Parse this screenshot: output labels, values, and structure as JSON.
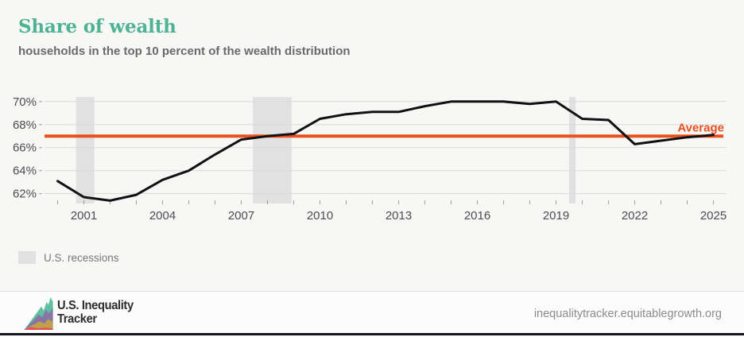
{
  "page": {
    "title": "Share of wealth",
    "subtitle": "households in the top 10 percent of the wealth distribution"
  },
  "legend": {
    "recessions_label": "U.S. recessions"
  },
  "footer": {
    "brand_line1": "U.S. Inequality",
    "brand_line2": "Tracker",
    "url": "inequalitytracker.equitablegrowth.org"
  },
  "colors": {
    "accent_teal": "#4db391",
    "line": "#111111",
    "average": "#e8511f",
    "recession_band": "#e1e1e1",
    "grid": "#d9d9d9",
    "tick": "#9a9a9a",
    "axis_text": "#4d4d4d",
    "logo_teal": "#5ec2a0",
    "logo_purple": "#8877a5",
    "logo_gold": "#c2a04b",
    "logo_red": "#e2504e"
  },
  "chart_data": {
    "type": "line",
    "title": "Share of wealth",
    "subtitle": "households in the top 10 percent of the wealth distribution",
    "series_name": "share of wealth held by households in the top 10 percent",
    "x": [
      2000,
      2001,
      2002,
      2003,
      2004,
      2005,
      2006,
      2007,
      2008,
      2009,
      2010,
      2011,
      2012,
      2013,
      2014,
      2015,
      2016,
      2017,
      2018,
      2019,
      2020,
      2021,
      2022,
      2023,
      2024,
      2025
    ],
    "values": [
      63.1,
      61.7,
      61.4,
      61.9,
      63.2,
      64.0,
      65.4,
      66.7,
      67.0,
      67.2,
      68.5,
      68.9,
      69.1,
      69.1,
      69.6,
      70.0,
      70.0,
      70.0,
      69.8,
      70.0,
      68.5,
      68.4,
      66.3,
      66.6,
      66.9,
      67.1
    ],
    "average_value": 67.0,
    "average_label": "Average",
    "y_ticks": [
      {
        "v": 70,
        "label": "70%"
      },
      {
        "v": 68,
        "label": "68%"
      },
      {
        "v": 66,
        "label": "66%"
      },
      {
        "v": 64,
        "label": "64%"
      },
      {
        "v": 62,
        "label": "62%"
      }
    ],
    "x_ticks": [
      {
        "v": 2001,
        "label": "2001"
      },
      {
        "v": 2004,
        "label": "2004"
      },
      {
        "v": 2007,
        "label": "2007"
      },
      {
        "v": 2010,
        "label": "2010"
      },
      {
        "v": 2013,
        "label": "2013"
      },
      {
        "v": 2016,
        "label": "2016"
      },
      {
        "v": 2019,
        "label": "2019"
      },
      {
        "v": 2022,
        "label": "2022"
      },
      {
        "v": 2025,
        "label": "2025"
      }
    ],
    "x_minor_ticks": [
      2000,
      2001,
      2002,
      2003,
      2004,
      2005,
      2006,
      2007,
      2008,
      2009,
      2010,
      2011,
      2012,
      2013,
      2014,
      2015,
      2016,
      2017,
      2018,
      2019,
      2020,
      2021,
      2022,
      2023,
      2024,
      2025
    ],
    "x_range": [
      1999.5,
      2025.5
    ],
    "y_range": [
      61.15,
      70.4
    ],
    "grid": true,
    "legend_position": "bottom-left",
    "recessions": [
      [
        2000.7,
        2001.4
      ],
      [
        2007.44,
        2008.92
      ],
      [
        2019.5,
        2019.75
      ]
    ],
    "recessions_legend": "U.S. recessions"
  }
}
